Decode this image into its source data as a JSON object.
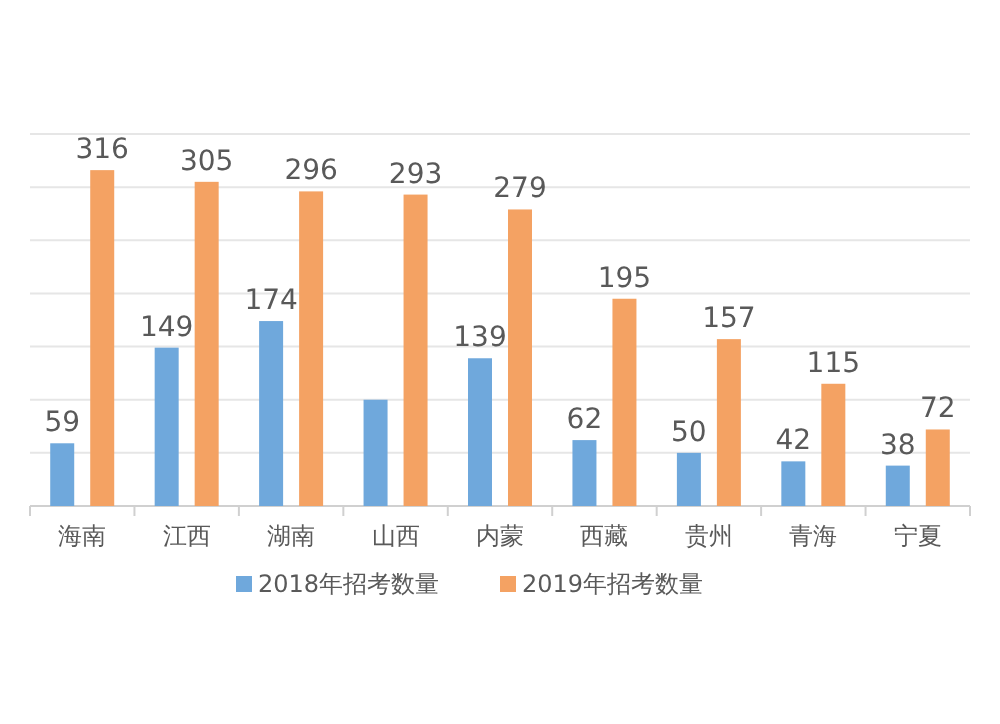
{
  "chart_data": {
    "type": "bar",
    "categories": [
      "海南",
      "江西",
      "湖南",
      "山西",
      "内蒙",
      "西藏",
      "贵州",
      "青海",
      "宁夏"
    ],
    "series": [
      {
        "name": "2018年招考数量",
        "color": "#6fa8dc",
        "values": [
          59,
          149,
          174,
          100,
          139,
          62,
          50,
          42,
          38
        ],
        "value_labels": [
          "59",
          "149",
          "174",
          null,
          "139",
          "62",
          "50",
          "42",
          "38"
        ]
      },
      {
        "name": "2019年招考数量",
        "color": "#f4a263",
        "values": [
          316,
          305,
          296,
          293,
          279,
          195,
          157,
          115,
          72
        ],
        "value_labels": [
          "316",
          "305",
          "296",
          "293",
          "279",
          "195",
          "157",
          "115",
          "72"
        ]
      }
    ],
    "ylim": [
      0,
      350
    ],
    "yticks": [
      {
        "value": 0,
        "label": null
      },
      {
        "value": 50,
        "label": null
      },
      {
        "value": 100,
        "label": null
      },
      {
        "value": 150,
        "label": null
      },
      {
        "value": 200,
        "label": null
      },
      {
        "value": 250,
        "label": null
      },
      {
        "value": 300,
        "label": null
      },
      {
        "value": 350,
        "label": null
      }
    ],
    "grid": "y",
    "legend": "bottom",
    "tick_labels": "x"
  }
}
